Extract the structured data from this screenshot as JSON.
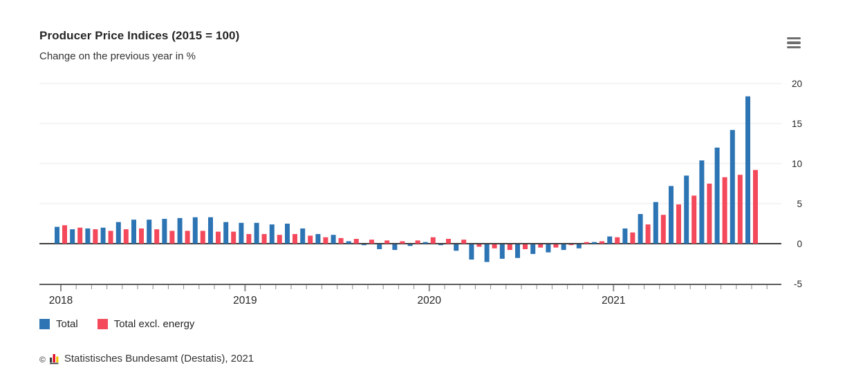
{
  "header": {
    "title": "Producer Price Indices (2015 = 100)",
    "subtitle": "Change on the previous year in %"
  },
  "legend": {
    "items": [
      {
        "label": "Total",
        "color": "#2c74b3"
      },
      {
        "label": "Total excl. energy",
        "color": "#f4485b"
      }
    ]
  },
  "footer": {
    "copyright": "©",
    "source": "Statistisches Bundesamt (Destatis), 2021"
  },
  "chart_data": {
    "type": "bar",
    "title": "Producer Price Indices (2015 = 100)",
    "subtitle": "Change on the previous year in %",
    "x": [
      "2018-01",
      "2018-02",
      "2018-03",
      "2018-04",
      "2018-05",
      "2018-06",
      "2018-07",
      "2018-08",
      "2018-09",
      "2018-10",
      "2018-11",
      "2018-12",
      "2019-01",
      "2019-02",
      "2019-03",
      "2019-04",
      "2019-05",
      "2019-06",
      "2019-07",
      "2019-08",
      "2019-09",
      "2019-10",
      "2019-11",
      "2019-12",
      "2020-01",
      "2020-02",
      "2020-03",
      "2020-04",
      "2020-05",
      "2020-06",
      "2020-07",
      "2020-08",
      "2020-09",
      "2020-10",
      "2020-11",
      "2020-12",
      "2021-01",
      "2021-02",
      "2021-03",
      "2021-04",
      "2021-05",
      "2021-06",
      "2021-07",
      "2021-08",
      "2021-09",
      "2021-10"
    ],
    "series": [
      {
        "name": "Total",
        "color": "#2c74b3",
        "values": [
          2.1,
          1.8,
          1.9,
          2.0,
          2.7,
          3.0,
          3.0,
          3.1,
          3.2,
          3.3,
          3.3,
          2.7,
          2.6,
          2.6,
          2.4,
          2.5,
          1.9,
          1.2,
          1.1,
          0.3,
          -0.1,
          -0.6,
          -0.7,
          -0.2,
          0.2,
          -0.1,
          -0.8,
          -1.9,
          -2.2,
          -1.8,
          -1.7,
          -1.2,
          -1.0,
          -0.7,
          -0.5,
          0.2,
          0.9,
          1.9,
          3.7,
          5.2,
          7.2,
          8.5,
          10.4,
          12.0,
          14.2,
          18.4
        ]
      },
      {
        "name": "Total excl. energy",
        "color": "#f4485b",
        "values": [
          2.3,
          2.0,
          1.8,
          1.6,
          1.8,
          1.9,
          1.8,
          1.6,
          1.6,
          1.6,
          1.5,
          1.5,
          1.2,
          1.2,
          1.1,
          1.2,
          1.0,
          0.8,
          0.7,
          0.6,
          0.5,
          0.4,
          0.3,
          0.4,
          0.8,
          0.6,
          0.5,
          -0.3,
          -0.5,
          -0.7,
          -0.6,
          -0.4,
          -0.4,
          -0.1,
          0.2,
          0.3,
          0.8,
          1.4,
          2.4,
          3.6,
          4.9,
          6.0,
          7.5,
          8.3,
          8.6,
          9.2
        ]
      }
    ],
    "ylim": [
      -5,
      20
    ],
    "yticks": [
      20,
      15,
      10,
      5,
      0,
      -5
    ],
    "year_labels": [
      "2018",
      "2019",
      "2020",
      "2021"
    ],
    "grid": "horizontal-light",
    "legend_position": "bottom-left",
    "source_label": "Statistisches Bundesamt (Destatis), 2021"
  }
}
